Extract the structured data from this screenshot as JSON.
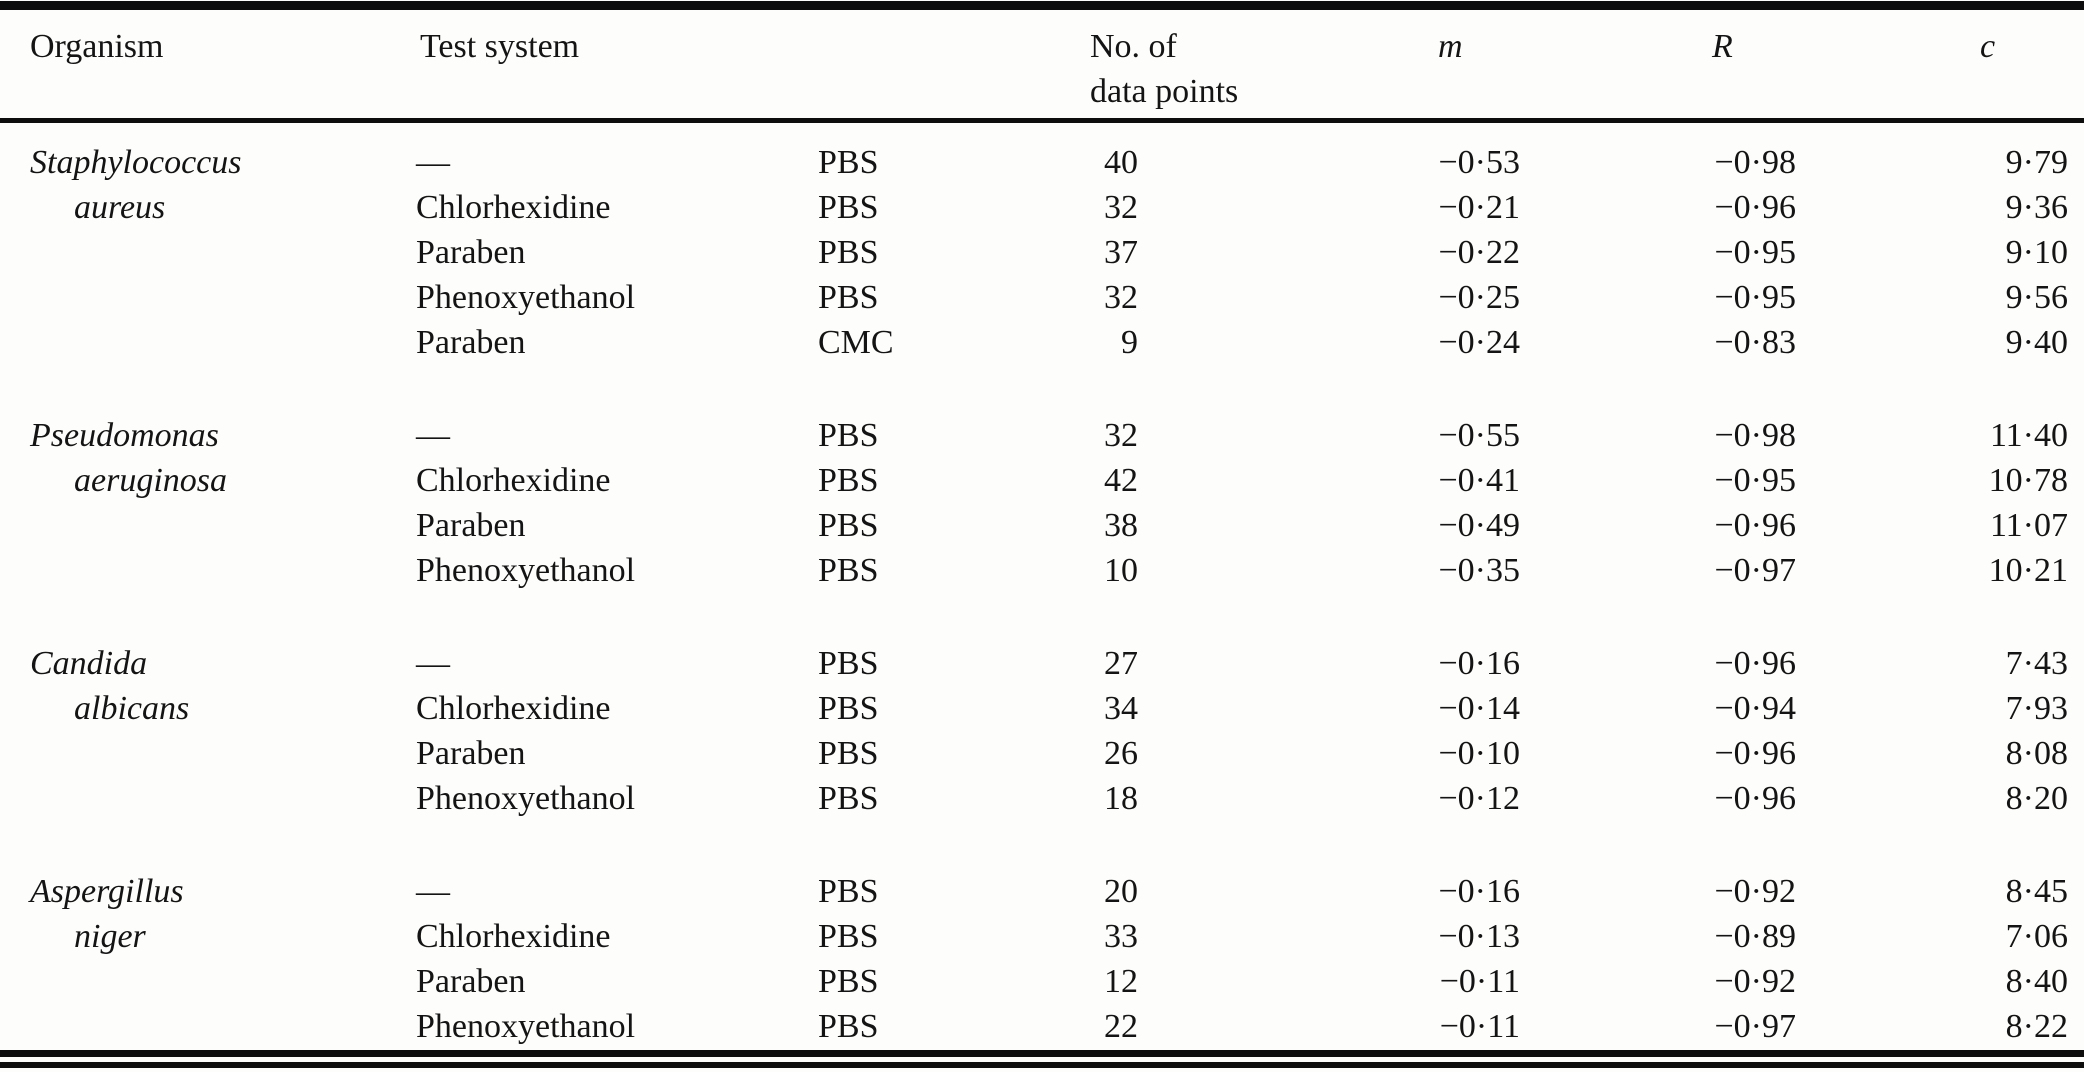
{
  "page": {
    "background": "#fdfdfb",
    "text_color": "#141414",
    "rule_color": "#0d0d0d"
  },
  "table": {
    "headers": {
      "organism": "Organism",
      "test_system": "Test system",
      "n_line1": "No. of",
      "n_line2": "data points",
      "m": "m",
      "R": "R",
      "c": "c"
    },
    "groups": [
      {
        "organism_line1": "Staphylococcus",
        "organism_line2": "aureus",
        "rows": [
          {
            "preservative": "—",
            "medium": "PBS",
            "n": "40",
            "m": "−0·53",
            "R": "−0·98",
            "c": "9·79"
          },
          {
            "preservative": "Chlorhexidine",
            "medium": "PBS",
            "n": "32",
            "m": "−0·21",
            "R": "−0·96",
            "c": "9·36"
          },
          {
            "preservative": "Paraben",
            "medium": "PBS",
            "n": "37",
            "m": "−0·22",
            "R": "−0·95",
            "c": "9·10"
          },
          {
            "preservative": "Phenoxyethanol",
            "medium": "PBS",
            "n": "32",
            "m": "−0·25",
            "R": "−0·95",
            "c": "9·56"
          },
          {
            "preservative": "Paraben",
            "medium": "CMC",
            "n": "9",
            "m": "−0·24",
            "R": "−0·83",
            "c": "9·40"
          }
        ]
      },
      {
        "organism_line1": "Pseudomonas",
        "organism_line2": "aeruginosa",
        "rows": [
          {
            "preservative": "—",
            "medium": "PBS",
            "n": "32",
            "m": "−0·55",
            "R": "−0·98",
            "c": "11·40"
          },
          {
            "preservative": "Chlorhexidine",
            "medium": "PBS",
            "n": "42",
            "m": "−0·41",
            "R": "−0·95",
            "c": "10·78"
          },
          {
            "preservative": "Paraben",
            "medium": "PBS",
            "n": "38",
            "m": "−0·49",
            "R": "−0·96",
            "c": "11·07"
          },
          {
            "preservative": "Phenoxyethanol",
            "medium": "PBS",
            "n": "10",
            "m": "−0·35",
            "R": "−0·97",
            "c": "10·21"
          }
        ]
      },
      {
        "organism_line1": "Candida",
        "organism_line2": "albicans",
        "rows": [
          {
            "preservative": "—",
            "medium": "PBS",
            "n": "27",
            "m": "−0·16",
            "R": "−0·96",
            "c": "7·43"
          },
          {
            "preservative": "Chlorhexidine",
            "medium": "PBS",
            "n": "34",
            "m": "−0·14",
            "R": "−0·94",
            "c": "7·93"
          },
          {
            "preservative": "Paraben",
            "medium": "PBS",
            "n": "26",
            "m": "−0·10",
            "R": "−0·96",
            "c": "8·08"
          },
          {
            "preservative": "Phenoxyethanol",
            "medium": "PBS",
            "n": "18",
            "m": "−0·12",
            "R": "−0·96",
            "c": "8·20"
          }
        ]
      },
      {
        "organism_line1": "Aspergillus",
        "organism_line2": "niger",
        "rows": [
          {
            "preservative": "—",
            "medium": "PBS",
            "n": "20",
            "m": "−0·16",
            "R": "−0·92",
            "c": "8·45"
          },
          {
            "preservative": "Chlorhexidine",
            "medium": "PBS",
            "n": "33",
            "m": "−0·13",
            "R": "−0·89",
            "c": "7·06"
          },
          {
            "preservative": "Paraben",
            "medium": "PBS",
            "n": "12",
            "m": "−0·11",
            "R": "−0·92",
            "c": "8·40"
          },
          {
            "preservative": "Phenoxyethanol",
            "medium": "PBS",
            "n": "22",
            "m": "−0·11",
            "R": "−0·97",
            "c": "8·22"
          }
        ]
      }
    ]
  }
}
